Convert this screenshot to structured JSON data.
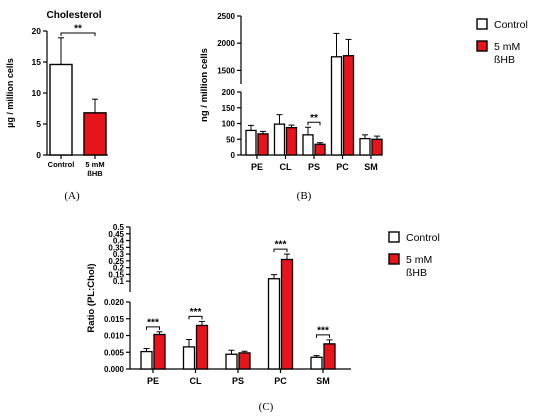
{
  "colors": {
    "control": "#ffffff",
    "bhb": "#e8141b",
    "stroke": "#000000"
  },
  "legend": {
    "control": "Control",
    "bhb_line1": "5 mM",
    "bhb_line2": "ßHB"
  },
  "chart_data": [
    {
      "type": "bar",
      "panel": "(A)",
      "title": "Cholesterol",
      "ylabel": "µg / million cells",
      "categories": [
        "Control",
        "5 mM ßHB"
      ],
      "category_labels": [
        [
          "Control"
        ],
        [
          "5 mM",
          "ßHB"
        ]
      ],
      "values": [
        14.6,
        6.8
      ],
      "errors": [
        4.3,
        2.2
      ],
      "ylim": [
        0,
        20
      ],
      "yticks": [
        0,
        5,
        10,
        15,
        20
      ],
      "ytick_labels": [
        "0",
        "5",
        "10",
        "15",
        "20"
      ],
      "significance": [
        {
          "between": [
            0,
            1
          ],
          "label": "**"
        }
      ],
      "legend": "none"
    },
    {
      "type": "bar",
      "panel": "(B)",
      "ylabel": "ng / million cells",
      "categories": [
        "PE",
        "CL",
        "PS",
        "PC",
        "SM"
      ],
      "series": [
        {
          "name": "Control",
          "values": [
            78,
            98,
            64,
            1750,
            52
          ],
          "errors": [
            16,
            30,
            24,
            430,
            12
          ]
        },
        {
          "name": "5 mM ßHB",
          "values": [
            67,
            87,
            34,
            1770,
            50
          ],
          "errors": [
            8,
            8,
            5,
            300,
            10
          ]
        }
      ],
      "axis_break": {
        "lower": [
          0,
          200
        ],
        "upper": [
          1250,
          2500
        ]
      },
      "yticks_lower": [
        0,
        50,
        100,
        150,
        200
      ],
      "ytick_labels_lower": [
        "0",
        "50",
        "100",
        "150",
        "200"
      ],
      "yticks_upper": [
        1500,
        2000,
        2500
      ],
      "ytick_labels_upper": [
        "1500",
        "2000",
        "2500"
      ],
      "significance": [
        {
          "category": "PS",
          "label": "**"
        }
      ],
      "legend": "right"
    },
    {
      "type": "bar",
      "panel": "(C)",
      "ylabel": "Ratio (PL:Chol)",
      "categories": [
        "PE",
        "CL",
        "PS",
        "PC",
        "SM"
      ],
      "series": [
        {
          "name": "Control",
          "values": [
            0.0052,
            0.0066,
            0.0044,
            0.118,
            0.0035
          ],
          "errors": [
            0.0009,
            0.0022,
            0.0012,
            0.03,
            0.0005
          ]
        },
        {
          "name": "5 mM ßHB",
          "values": [
            0.0103,
            0.013,
            0.0048,
            0.26,
            0.0075
          ],
          "errors": [
            0.0008,
            0.0012,
            0.0005,
            0.04,
            0.0012
          ]
        }
      ],
      "axis_break": {
        "lower": [
          0,
          0.02
        ],
        "upper": [
          0.02,
          0.5
        ]
      },
      "yticks_lower": [
        0,
        0.005,
        0.01,
        0.015,
        0.02
      ],
      "ytick_labels_lower": [
        "0.000",
        "0.005",
        "0.010",
        "0.015",
        "0.020"
      ],
      "yticks_upper": [
        0.1,
        0.15,
        0.2,
        0.25,
        0.3,
        0.35,
        0.4,
        0.45,
        0.5
      ],
      "ytick_labels_upper": [
        "0.1",
        "0.15",
        "0.2",
        "0.25",
        "0.3",
        "0.35",
        "0.4",
        "0.45",
        "0.5"
      ],
      "significance": [
        {
          "category": "PE",
          "label": "***"
        },
        {
          "category": "CL",
          "label": "***"
        },
        {
          "category": "PC",
          "label": "***"
        },
        {
          "category": "SM",
          "label": "***"
        }
      ],
      "legend": "right"
    }
  ]
}
